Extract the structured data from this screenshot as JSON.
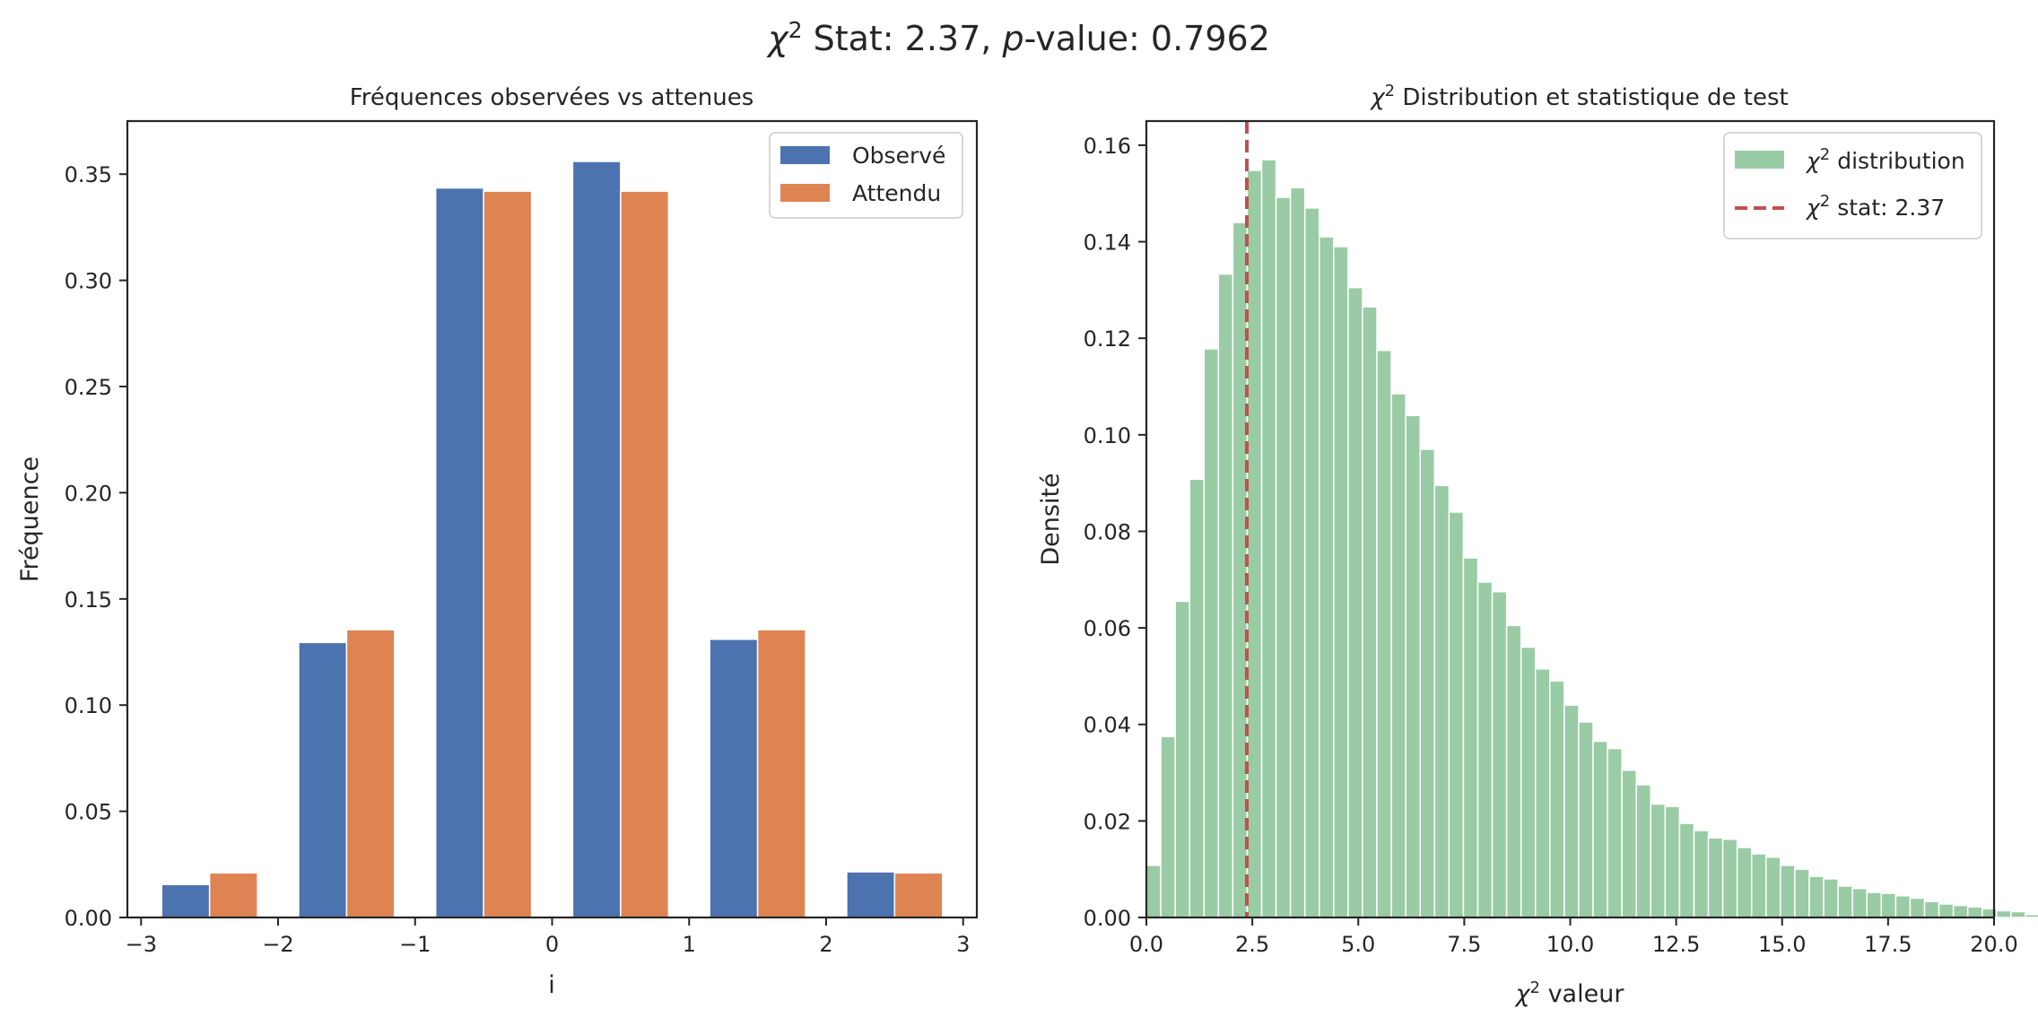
{
  "figure": {
    "suptitle_parts": [
      "χ",
      "2",
      " Stat: 2.37, ",
      "p",
      "-value: 0.7962"
    ]
  },
  "chart_data": [
    {
      "type": "bar",
      "title": "Fréquences observées vs attenues",
      "xlabel": "i",
      "ylabel": "Fréquence",
      "xlim": [
        -3.1,
        3.1
      ],
      "ylim": [
        0,
        0.375
      ],
      "xticks": [
        -3,
        -2,
        -1,
        0,
        1,
        2,
        3
      ],
      "xtick_labels": [
        "−3",
        "−2",
        "−1",
        "0",
        "1",
        "2",
        "3"
      ],
      "yticks": [
        0,
        0.05,
        0.1,
        0.15,
        0.2,
        0.25,
        0.3,
        0.35
      ],
      "ytick_labels": [
        "0.00",
        "0.05",
        "0.10",
        "0.15",
        "0.20",
        "0.25",
        "0.30",
        "0.35"
      ],
      "x": [
        -2.5,
        -1.5,
        -0.5,
        0.5,
        1.5,
        2.5
      ],
      "bar_width": 0.35,
      "series": [
        {
          "name": "Observé",
          "color": "#4c72b0",
          "values": [
            0.0155,
            0.1295,
            0.3435,
            0.356,
            0.131,
            0.0215
          ]
        },
        {
          "name": "Attendu",
          "color": "#dd8452",
          "values": [
            0.021,
            0.1355,
            0.342,
            0.342,
            0.1355,
            0.021
          ]
        }
      ],
      "legend_loc": "top-right",
      "grid": false
    },
    {
      "type": "histogram",
      "title_parts": [
        "χ",
        "2",
        " Distribution et statistique de test"
      ],
      "xlabel_parts": [
        "χ",
        "2",
        " valeur"
      ],
      "ylabel": "Densité",
      "xlim": [
        0,
        20
      ],
      "ylim": [
        0,
        0.165
      ],
      "xticks": [
        0,
        2.5,
        5,
        7.5,
        10,
        12.5,
        15,
        17.5,
        20
      ],
      "xtick_labels": [
        "0.0",
        "2.5",
        "5.0",
        "7.5",
        "10.0",
        "12.5",
        "15.0",
        "17.5",
        "20.0"
      ],
      "yticks": [
        0,
        0.02,
        0.04,
        0.06,
        0.08,
        0.1,
        0.12,
        0.14,
        0.16
      ],
      "ytick_labels": [
        "0.00",
        "0.02",
        "0.04",
        "0.06",
        "0.08",
        "0.10",
        "0.12",
        "0.14",
        "0.16"
      ],
      "bin_start": 0,
      "bin_width": 0.34,
      "density": [
        0.0108,
        0.0375,
        0.0655,
        0.0908,
        0.1178,
        0.1333,
        0.144,
        0.1548,
        0.157,
        0.1492,
        0.1512,
        0.147,
        0.141,
        0.139,
        0.1305,
        0.1265,
        0.1175,
        0.1085,
        0.104,
        0.097,
        0.0895,
        0.084,
        0.0745,
        0.0695,
        0.0675,
        0.0605,
        0.056,
        0.0515,
        0.049,
        0.044,
        0.0405,
        0.0365,
        0.035,
        0.0305,
        0.0275,
        0.0235,
        0.023,
        0.0195,
        0.018,
        0.0165,
        0.0162,
        0.0145,
        0.0132,
        0.0125,
        0.0108,
        0.01,
        0.0085,
        0.008,
        0.0065,
        0.006,
        0.0052,
        0.005,
        0.0045,
        0.004,
        0.0033,
        0.0028,
        0.0025,
        0.0022,
        0.0018,
        0.0014,
        0.0012,
        0.0006
      ],
      "color": "#55a868",
      "vline": {
        "x": 2.37,
        "color": "#c44e52",
        "style": "dashed"
      },
      "legend": [
        {
          "label_parts": [
            "χ",
            "2",
            " distribution"
          ],
          "kind": "patch",
          "color": "#55a868"
        },
        {
          "label_parts": [
            "χ",
            "2",
            " stat: 2.37"
          ],
          "kind": "dashed-line",
          "color": "#c44e52"
        }
      ],
      "legend_loc": "top-right",
      "grid": false
    }
  ]
}
